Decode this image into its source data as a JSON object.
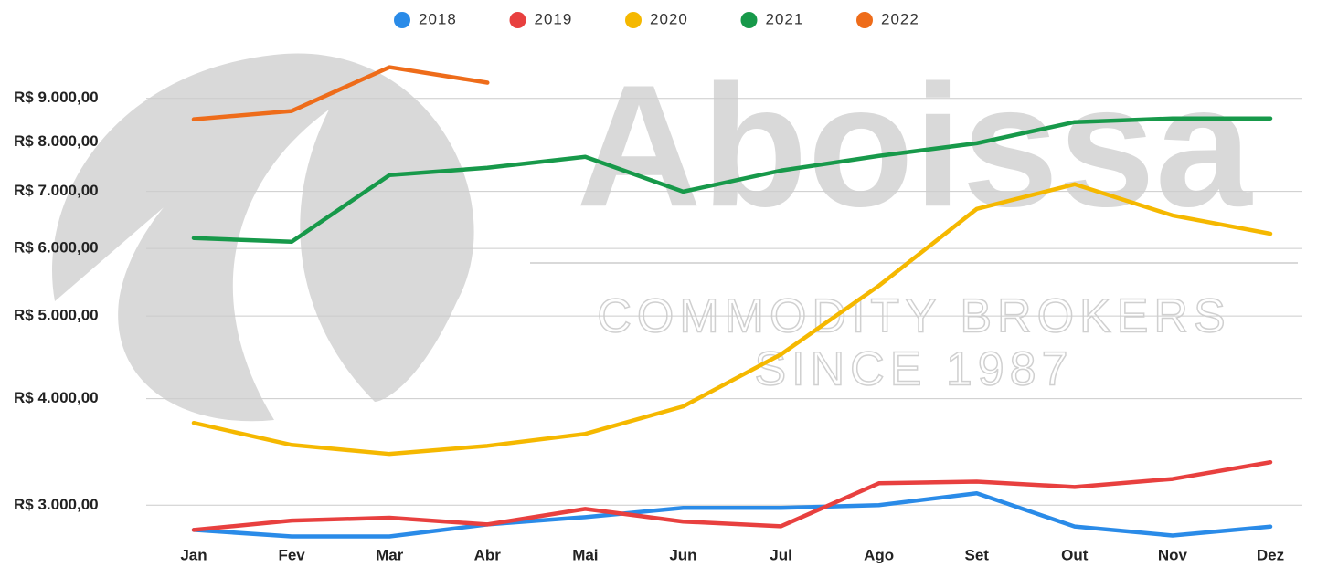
{
  "chart_data": {
    "type": "line",
    "annotations": [
      "Aboissa",
      "COMMODITY BROKERS",
      "SINCE 1987"
    ],
    "categories": [
      "Jan",
      "Fev",
      "Mar",
      "Abr",
      "Mai",
      "Jun",
      "Jul",
      "Ago",
      "Set",
      "Out",
      "Nov",
      "Dez"
    ],
    "series": [
      {
        "name": "2018",
        "color": "#2a8be8",
        "values": [
          2806,
          2757,
          2757,
          2848,
          2905,
          2978,
          2978,
          3000,
          3098,
          2832,
          2764,
          2831
        ]
      },
      {
        "name": "2019",
        "color": "#e8403f",
        "values": [
          2806,
          2878,
          2900,
          2848,
          2970,
          2870,
          2834,
          3183,
          3197,
          3151,
          3220,
          3369
        ]
      },
      {
        "name": "2020",
        "color": "#f5b800",
        "values": [
          3746,
          3530,
          3445,
          3521,
          3637,
          3917,
          4508,
          5426,
          6677,
          7137,
          6561,
          6244
        ]
      },
      {
        "name": "2021",
        "color": "#17994a",
        "values": [
          6171,
          6110,
          7316,
          7461,
          7685,
          6996,
          7406,
          7705,
          7973,
          8441,
          8525,
          8525
        ]
      },
      {
        "name": "2022",
        "color": "#ee6c1a",
        "values": [
          8505,
          8698,
          9791,
          9390,
          null,
          null,
          null,
          null,
          null,
          null,
          null,
          null
        ]
      }
    ],
    "ylim": [
      2700,
      10000
    ],
    "log_scale": true,
    "grid": true,
    "legend": "top",
    "yticks": [
      {
        "value": 3000,
        "label": "R$ 3.000,00"
      },
      {
        "value": 4000,
        "label": "R$ 4.000,00"
      },
      {
        "value": 5000,
        "label": "R$ 5.000,00"
      },
      {
        "value": 6000,
        "label": "R$ 6.000,00"
      },
      {
        "value": 7000,
        "label": "R$ 7.000,00"
      },
      {
        "value": 8000,
        "label": "R$ 8.000,00"
      },
      {
        "value": 9000,
        "label": "R$ 9.000,00"
      }
    ]
  }
}
